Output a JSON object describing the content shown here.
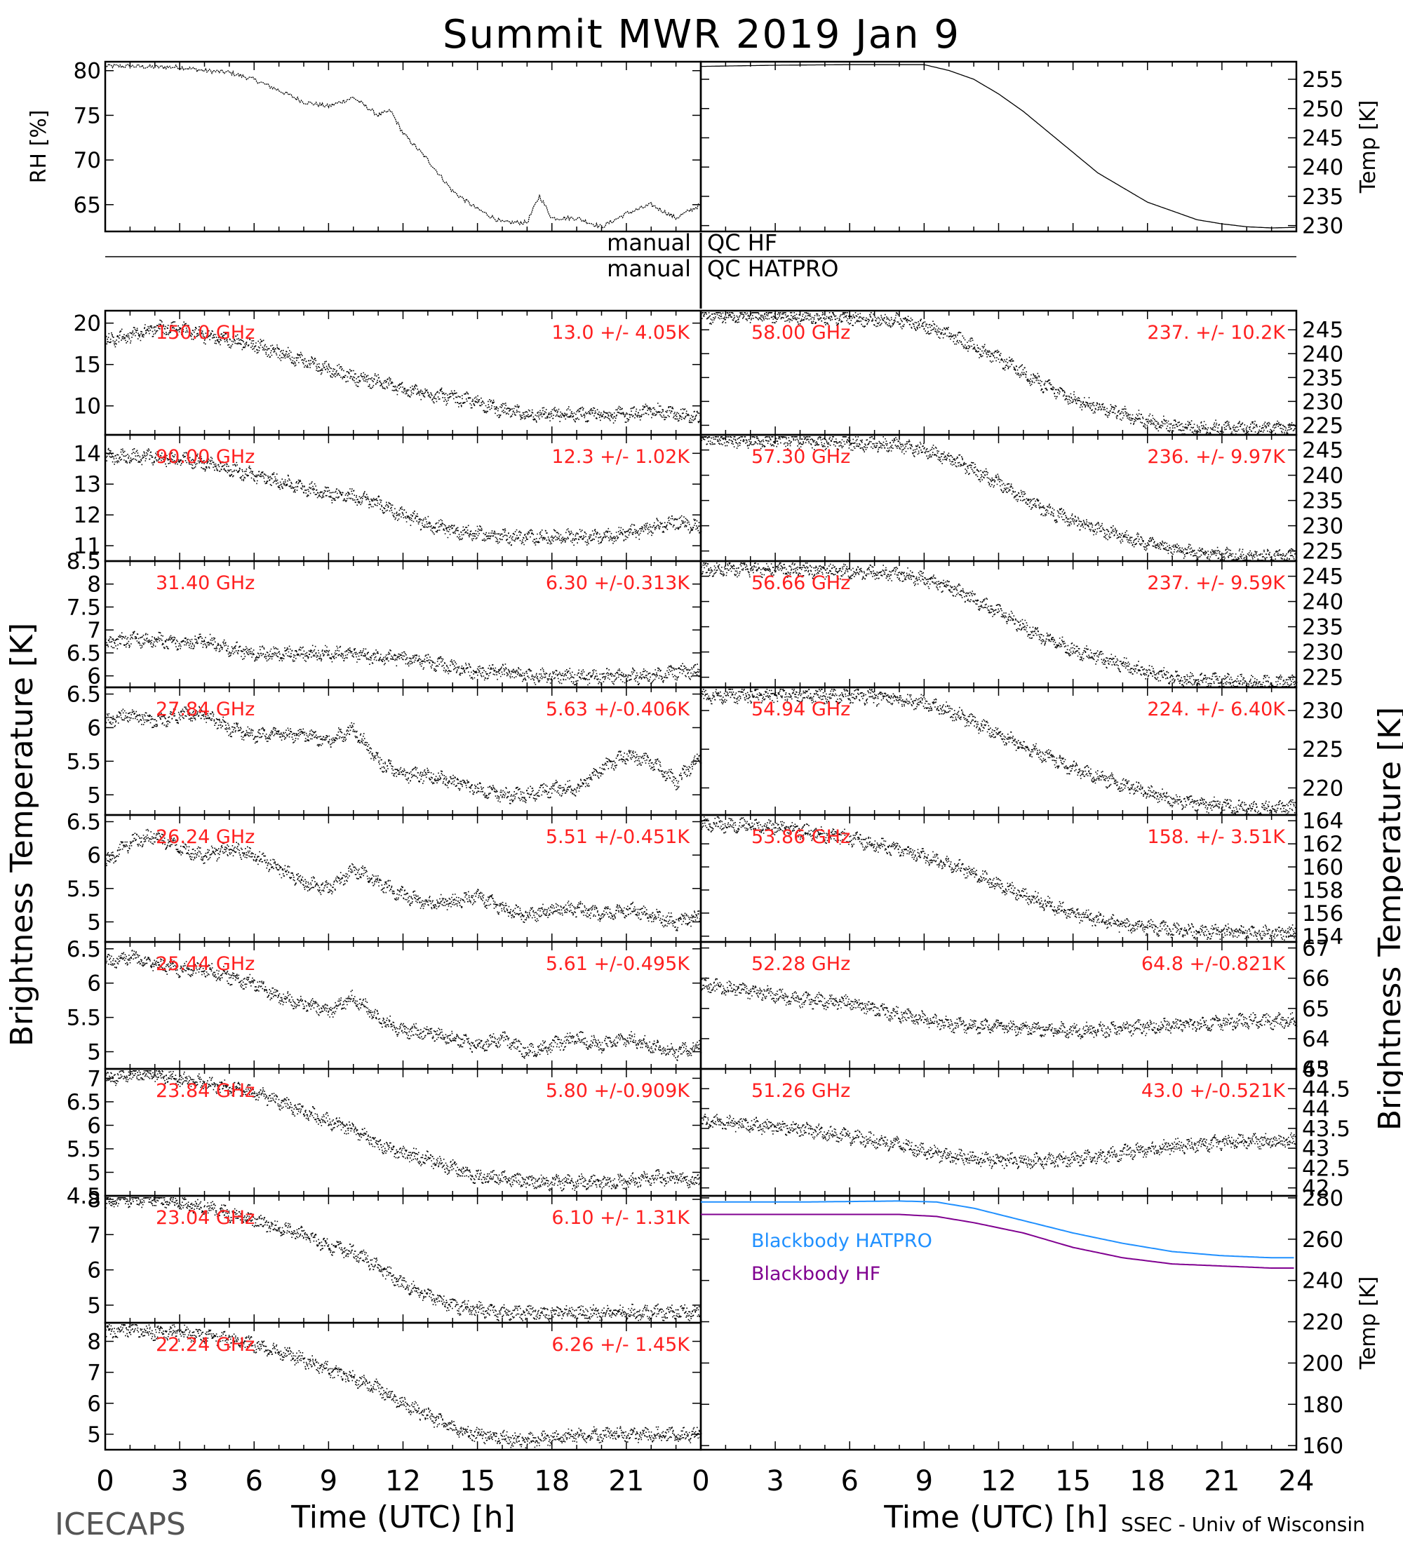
{
  "title": "Summit MWR 2019 Jan  9",
  "footer_left": "ICECAPS",
  "footer_right": "SSEC - Univ of Wisconsin",
  "colors": {
    "axis": "#000000",
    "label_red": "#ff2020",
    "hatpro": "#2090ff",
    "hf": "#800090"
  },
  "chart_data": [
    {
      "id": "rh",
      "type": "line",
      "ylabel": "RH [%]",
      "ylim": [
        62,
        81
      ],
      "yticks": [
        65,
        70,
        75,
        80
      ],
      "y_side": "left",
      "x": [
        0,
        1,
        2,
        3,
        4,
        5,
        6,
        7,
        8,
        9,
        10,
        11,
        11.5,
        12,
        13,
        14,
        15,
        16,
        17,
        17.5,
        18,
        19,
        20,
        21,
        22,
        23,
        24
      ],
      "values": [
        80.5,
        80.5,
        80.4,
        80.4,
        80,
        79.8,
        79,
        77.8,
        76.5,
        76,
        77,
        75,
        75.5,
        73,
        70,
        66.5,
        64.5,
        63,
        63,
        66,
        63.5,
        63.5,
        62.5,
        64,
        65,
        63.5,
        65
      ]
    },
    {
      "id": "temp",
      "type": "line",
      "ylabel": "Temp [K]",
      "ylim": [
        229,
        258
      ],
      "yticks": [
        230,
        235,
        240,
        245,
        250,
        255
      ],
      "y_side": "right",
      "x": [
        0,
        3,
        6,
        9,
        10,
        11,
        12,
        13,
        14,
        15,
        16,
        17,
        18,
        19,
        20,
        21,
        22,
        23,
        24
      ],
      "values": [
        257.2,
        257.4,
        257.5,
        257.5,
        256.5,
        255,
        252.5,
        249.5,
        246,
        242.5,
        239,
        236.5,
        234,
        232.5,
        231,
        230.3,
        229.8,
        229.6,
        229.7
      ]
    },
    {
      "id": "c1500",
      "type": "scatter",
      "label": "150.0 GHz",
      "stats": "13.0 +/-  4.05K",
      "ylim": [
        6.5,
        21.5
      ],
      "yticks": [
        10,
        15,
        20
      ],
      "y_side": "left",
      "x": [
        0,
        1,
        2,
        3,
        4,
        5,
        6,
        7,
        8,
        9,
        10,
        11,
        12,
        13,
        14,
        15,
        16,
        17,
        18,
        19,
        20,
        21,
        22,
        23,
        24
      ],
      "values": [
        18,
        18.5,
        19.5,
        19.5,
        18.5,
        18,
        17.5,
        16.5,
        15.5,
        14.5,
        13.5,
        13,
        12,
        11.5,
        11,
        10.5,
        9.5,
        9,
        9,
        9,
        9,
        9,
        9.5,
        9,
        8.5
      ]
    },
    {
      "id": "c9000",
      "type": "scatter",
      "label": "90.00 GHz",
      "stats": "12.3 +/-  1.02K",
      "ylim": [
        10.5,
        14.6
      ],
      "yticks": [
        11,
        12,
        13,
        14
      ],
      "y_side": "left",
      "x": [
        0,
        1,
        2,
        3,
        4,
        5,
        6,
        7,
        8,
        9,
        10,
        11,
        12,
        13,
        14,
        15,
        16,
        17,
        18,
        19,
        20,
        21,
        22,
        23,
        24
      ],
      "values": [
        13.9,
        13.9,
        13.9,
        13.8,
        13.7,
        13.5,
        13.3,
        13.1,
        12.9,
        12.7,
        12.6,
        12.4,
        12.0,
        11.7,
        11.5,
        11.4,
        11.3,
        11.3,
        11.3,
        11.3,
        11.3,
        11.4,
        11.6,
        11.8,
        11.6
      ]
    },
    {
      "id": "c3140",
      "type": "scatter",
      "label": "31.40 GHz",
      "stats": "6.30 +/-0.313K",
      "ylim": [
        5.75,
        8.5
      ],
      "yticks": [
        6.0,
        6.5,
        7.0,
        7.5,
        8.0,
        8.5
      ],
      "y_side": "left",
      "x": [
        0,
        1,
        2,
        3,
        4,
        5,
        6,
        7,
        8,
        9,
        10,
        11,
        12,
        13,
        14,
        15,
        16,
        17,
        18,
        19,
        20,
        21,
        22,
        23,
        24
      ],
      "values": [
        6.7,
        6.8,
        6.8,
        6.7,
        6.8,
        6.6,
        6.5,
        6.5,
        6.5,
        6.5,
        6.5,
        6.4,
        6.4,
        6.3,
        6.2,
        6.1,
        6.1,
        6.0,
        6.0,
        6.0,
        6.0,
        6.0,
        6.0,
        6.1,
        6.1
      ]
    },
    {
      "id": "c2784",
      "type": "scatter",
      "label": "27.84 GHz",
      "stats": "5.63 +/-0.406K",
      "ylim": [
        4.7,
        6.6
      ],
      "yticks": [
        5.0,
        5.5,
        6.0,
        6.5
      ],
      "y_side": "left",
      "x": [
        0,
        1,
        2,
        3,
        4,
        5,
        6,
        7,
        8,
        9,
        10,
        11,
        12,
        13,
        14,
        15,
        16,
        17,
        18,
        19,
        20,
        21,
        22,
        23,
        24
      ],
      "values": [
        6.1,
        6.2,
        6.1,
        6.2,
        6.2,
        6.0,
        5.9,
        5.9,
        5.9,
        5.8,
        6.0,
        5.5,
        5.3,
        5.3,
        5.2,
        5.1,
        5.0,
        5.0,
        5.1,
        5.1,
        5.4,
        5.6,
        5.5,
        5.2,
        5.6
      ]
    },
    {
      "id": "c2624",
      "type": "scatter",
      "label": "26.24 GHz",
      "stats": "5.51 +/-0.451K",
      "ylim": [
        4.7,
        6.6
      ],
      "yticks": [
        5.0,
        5.5,
        6.0,
        6.5
      ],
      "y_side": "left",
      "x": [
        0,
        1,
        2,
        3,
        4,
        5,
        6,
        7,
        8,
        9,
        10,
        11,
        12,
        13,
        14,
        15,
        16,
        17,
        18,
        19,
        20,
        21,
        22,
        23,
        24
      ],
      "values": [
        5.9,
        6.2,
        6.3,
        6.1,
        6.0,
        6.1,
        6.0,
        5.8,
        5.6,
        5.5,
        5.8,
        5.6,
        5.4,
        5.3,
        5.3,
        5.4,
        5.2,
        5.1,
        5.2,
        5.2,
        5.1,
        5.2,
        5.1,
        5.0,
        5.1
      ]
    },
    {
      "id": "c2544",
      "type": "scatter",
      "label": "25.44 GHz",
      "stats": "5.61 +/-0.495K",
      "ylim": [
        4.75,
        6.6
      ],
      "yticks": [
        5.0,
        5.5,
        6.0,
        6.5
      ],
      "y_side": "left",
      "x": [
        0,
        1,
        2,
        3,
        4,
        5,
        6,
        7,
        8,
        9,
        10,
        11,
        12,
        13,
        14,
        15,
        16,
        17,
        18,
        19,
        20,
        21,
        22,
        23,
        24
      ],
      "values": [
        6.3,
        6.4,
        6.3,
        6.2,
        6.2,
        6.1,
        6.0,
        5.8,
        5.7,
        5.6,
        5.8,
        5.5,
        5.3,
        5.3,
        5.2,
        5.1,
        5.2,
        5.0,
        5.1,
        5.2,
        5.1,
        5.2,
        5.1,
        5.0,
        5.1
      ]
    },
    {
      "id": "c2384",
      "type": "scatter",
      "label": "23.84 GHz",
      "stats": "5.80 +/-0.909K",
      "ylim": [
        4.5,
        7.2
      ],
      "yticks": [
        4.5,
        5.0,
        5.5,
        6.0,
        6.5,
        7.0
      ],
      "y_side": "left",
      "x": [
        0,
        1,
        2,
        3,
        4,
        5,
        6,
        7,
        8,
        9,
        10,
        11,
        12,
        13,
        14,
        15,
        16,
        17,
        18,
        19,
        20,
        21,
        22,
        23,
        24
      ],
      "values": [
        7.0,
        7.1,
        7.1,
        7.0,
        6.9,
        6.8,
        6.7,
        6.5,
        6.3,
        6.1,
        5.9,
        5.6,
        5.4,
        5.3,
        5.1,
        4.9,
        4.9,
        4.8,
        4.8,
        4.8,
        4.8,
        4.8,
        4.9,
        4.9,
        4.8
      ]
    },
    {
      "id": "c2304",
      "type": "scatter",
      "label": "23.04 GHz",
      "stats": "6.10 +/-  1.31K",
      "ylim": [
        4.5,
        8.1
      ],
      "yticks": [
        5,
        6,
        7,
        8
      ],
      "y_side": "left",
      "x": [
        0,
        1,
        2,
        3,
        4,
        5,
        6,
        7,
        8,
        9,
        10,
        11,
        12,
        13,
        14,
        15,
        16,
        17,
        18,
        19,
        20,
        21,
        22,
        23,
        24
      ],
      "values": [
        7.9,
        8.0,
        8.0,
        7.9,
        7.8,
        7.6,
        7.4,
        7.2,
        7.0,
        6.7,
        6.5,
        6.1,
        5.6,
        5.3,
        5.0,
        4.9,
        4.8,
        4.8,
        4.8,
        4.8,
        4.8,
        4.8,
        4.8,
        4.8,
        4.8
      ]
    },
    {
      "id": "c2224",
      "type": "scatter",
      "label": "22.24 GHz",
      "stats": "6.26 +/-  1.45K",
      "ylim": [
        4.5,
        8.6
      ],
      "yticks": [
        5,
        6,
        7,
        8
      ],
      "y_side": "left",
      "x": [
        0,
        1,
        2,
        3,
        4,
        5,
        6,
        7,
        8,
        9,
        10,
        11,
        12,
        13,
        14,
        15,
        16,
        17,
        18,
        19,
        20,
        21,
        22,
        23,
        24
      ],
      "values": [
        8.3,
        8.4,
        8.3,
        8.3,
        8.2,
        8.1,
        7.9,
        7.7,
        7.4,
        7.1,
        6.8,
        6.5,
        6.0,
        5.6,
        5.2,
        5.0,
        4.9,
        4.8,
        4.9,
        5.0,
        5.0,
        5.0,
        5.0,
        5.0,
        5.0
      ]
    },
    {
      "id": "c5800",
      "type": "scatter",
      "label": "58.00 GHz",
      "stats": "237. +/- 10.2K",
      "ylim": [
        223,
        249
      ],
      "yticks": [
        225,
        230,
        235,
        240,
        245
      ],
      "y_side": "right",
      "x": [
        0,
        3,
        6,
        8,
        9,
        10,
        11,
        12,
        13,
        14,
        15,
        16,
        17,
        18,
        19,
        20,
        21,
        22,
        23,
        24
      ],
      "values": [
        248,
        248,
        247.5,
        247,
        246,
        244,
        241.5,
        239,
        236,
        233,
        230.5,
        229,
        227.5,
        226,
        225,
        224.5,
        224.5,
        224.5,
        224.5,
        224.5
      ]
    },
    {
      "id": "c5730",
      "type": "scatter",
      "label": "57.30 GHz",
      "stats": "236. +/- 9.97K",
      "ylim": [
        223,
        248
      ],
      "yticks": [
        225,
        230,
        235,
        240,
        245
      ],
      "y_side": "right",
      "x": [
        0,
        3,
        6,
        8,
        9,
        10,
        11,
        12,
        13,
        14,
        15,
        16,
        17,
        18,
        19,
        20,
        21,
        22,
        23,
        24
      ],
      "values": [
        247,
        247,
        246.5,
        246,
        245,
        243.5,
        241,
        238.5,
        235.5,
        233,
        231,
        229.5,
        228,
        226.5,
        225.5,
        224.5,
        224.5,
        224,
        224,
        224
      ]
    },
    {
      "id": "c5666",
      "type": "scatter",
      "label": "56.66 GHz",
      "stats": "237. +/- 9.59K",
      "ylim": [
        223,
        248
      ],
      "yticks": [
        225,
        230,
        235,
        240,
        245
      ],
      "y_side": "right",
      "x": [
        0,
        3,
        6,
        8,
        9,
        10,
        11,
        12,
        13,
        14,
        15,
        16,
        17,
        18,
        19,
        20,
        21,
        22,
        23,
        24
      ],
      "values": [
        246.5,
        246.5,
        246,
        245.5,
        244.5,
        243,
        240.5,
        238,
        235,
        232.5,
        230.5,
        229,
        227.5,
        226,
        225,
        224.5,
        224.5,
        224,
        224,
        224
      ]
    },
    {
      "id": "c5494",
      "type": "scatter",
      "label": "54.94 GHz",
      "stats": "224. +/- 6.40K",
      "ylim": [
        216.5,
        233
      ],
      "yticks": [
        220,
        225,
        230
      ],
      "y_side": "right",
      "x": [
        0,
        3,
        6,
        8,
        9,
        10,
        11,
        12,
        13,
        14,
        15,
        16,
        17,
        18,
        19,
        20,
        21,
        22,
        23,
        24
      ],
      "values": [
        232,
        232,
        232,
        231.5,
        231,
        230,
        228.5,
        227,
        225.5,
        224,
        222.5,
        221.5,
        220.5,
        219.5,
        218.5,
        218,
        217.8,
        217.5,
        217.5,
        217.5
      ]
    },
    {
      "id": "c5386",
      "type": "scatter",
      "label": "53.86 GHz",
      "stats": "158. +/- 3.51K",
      "ylim": [
        153.5,
        164.5
      ],
      "yticks": [
        154,
        156,
        158,
        160,
        162,
        164
      ],
      "y_side": "right",
      "x": [
        0,
        3,
        6,
        8,
        9,
        10,
        11,
        12,
        13,
        14,
        15,
        16,
        17,
        18,
        19,
        20,
        21,
        22,
        23,
        24
      ],
      "values": [
        163.8,
        163.5,
        162.5,
        161.5,
        161,
        160.3,
        159.5,
        158.5,
        157.6,
        156.8,
        156,
        155.5,
        155,
        154.8,
        154.6,
        154.5,
        154.4,
        154.3,
        154.3,
        154.3
      ]
    },
    {
      "id": "c5228",
      "type": "scatter",
      "label": "52.28 GHz",
      "stats": "64.8 +/-0.821K",
      "ylim": [
        63,
        67.2
      ],
      "yticks": [
        63,
        64,
        65,
        66,
        67
      ],
      "y_side": "right",
      "x": [
        0,
        2,
        4,
        6,
        8,
        10,
        12,
        14,
        16,
        18,
        20,
        22,
        24
      ],
      "values": [
        65.8,
        65.6,
        65.3,
        65.2,
        64.8,
        64.5,
        64.4,
        64.3,
        64.3,
        64.4,
        64.5,
        64.6,
        64.6
      ]
    },
    {
      "id": "c5126",
      "type": "scatter",
      "label": "51.26 GHz",
      "stats": "43.0 +/-0.521K",
      "ylim": [
        41.8,
        45
      ],
      "yticks": [
        42,
        42.5,
        43,
        43.5,
        44,
        44.5,
        45
      ],
      "y_side": "right",
      "x": [
        0,
        2,
        4,
        6,
        8,
        10,
        12,
        14,
        16,
        18,
        20,
        22,
        24
      ],
      "values": [
        43.7,
        43.6,
        43.5,
        43.3,
        43.1,
        42.8,
        42.7,
        42.7,
        42.8,
        43.0,
        43.1,
        43.2,
        43.2
      ]
    },
    {
      "id": "bb",
      "type": "line",
      "ylabel": "Temp [K]",
      "ylim": [
        158,
        281
      ],
      "yticks": [
        160,
        180,
        200,
        220,
        240,
        260,
        280
      ],
      "y_side": "right",
      "series": [
        {
          "name": "Blackbody HATPRO",
          "x": [
            0,
            4,
            8,
            9.5,
            11,
            13,
            15,
            17,
            19,
            21,
            23,
            24
          ],
          "values": [
            278,
            278,
            278.5,
            278,
            275,
            269,
            263,
            258,
            254,
            252,
            251,
            251
          ]
        },
        {
          "name": "Blackbody HF",
          "x": [
            0,
            4,
            8,
            9.5,
            11,
            13,
            15,
            17,
            19,
            21,
            23,
            24
          ],
          "values": [
            272,
            272,
            272,
            271,
            268,
            263,
            256,
            251,
            248,
            247,
            246,
            246
          ]
        }
      ]
    }
  ],
  "qc_left_1": "manual",
  "qc_right_1": "QC HF",
  "qc_left_2": "manual",
  "qc_right_2": "QC HATPRO",
  "y_left_label": "Brightness Temperature [K]",
  "y_right_label": "Brightness Temperature [K]",
  "x_ticks": [
    "0",
    "3",
    "6",
    "9",
    "12",
    "15",
    "18",
    "21",
    "0",
    "3",
    "6",
    "9",
    "12",
    "15",
    "18",
    "21",
    "24"
  ],
  "x_label_left": "Time (UTC) [h]",
  "x_label_right": "Time (UTC) [h]"
}
